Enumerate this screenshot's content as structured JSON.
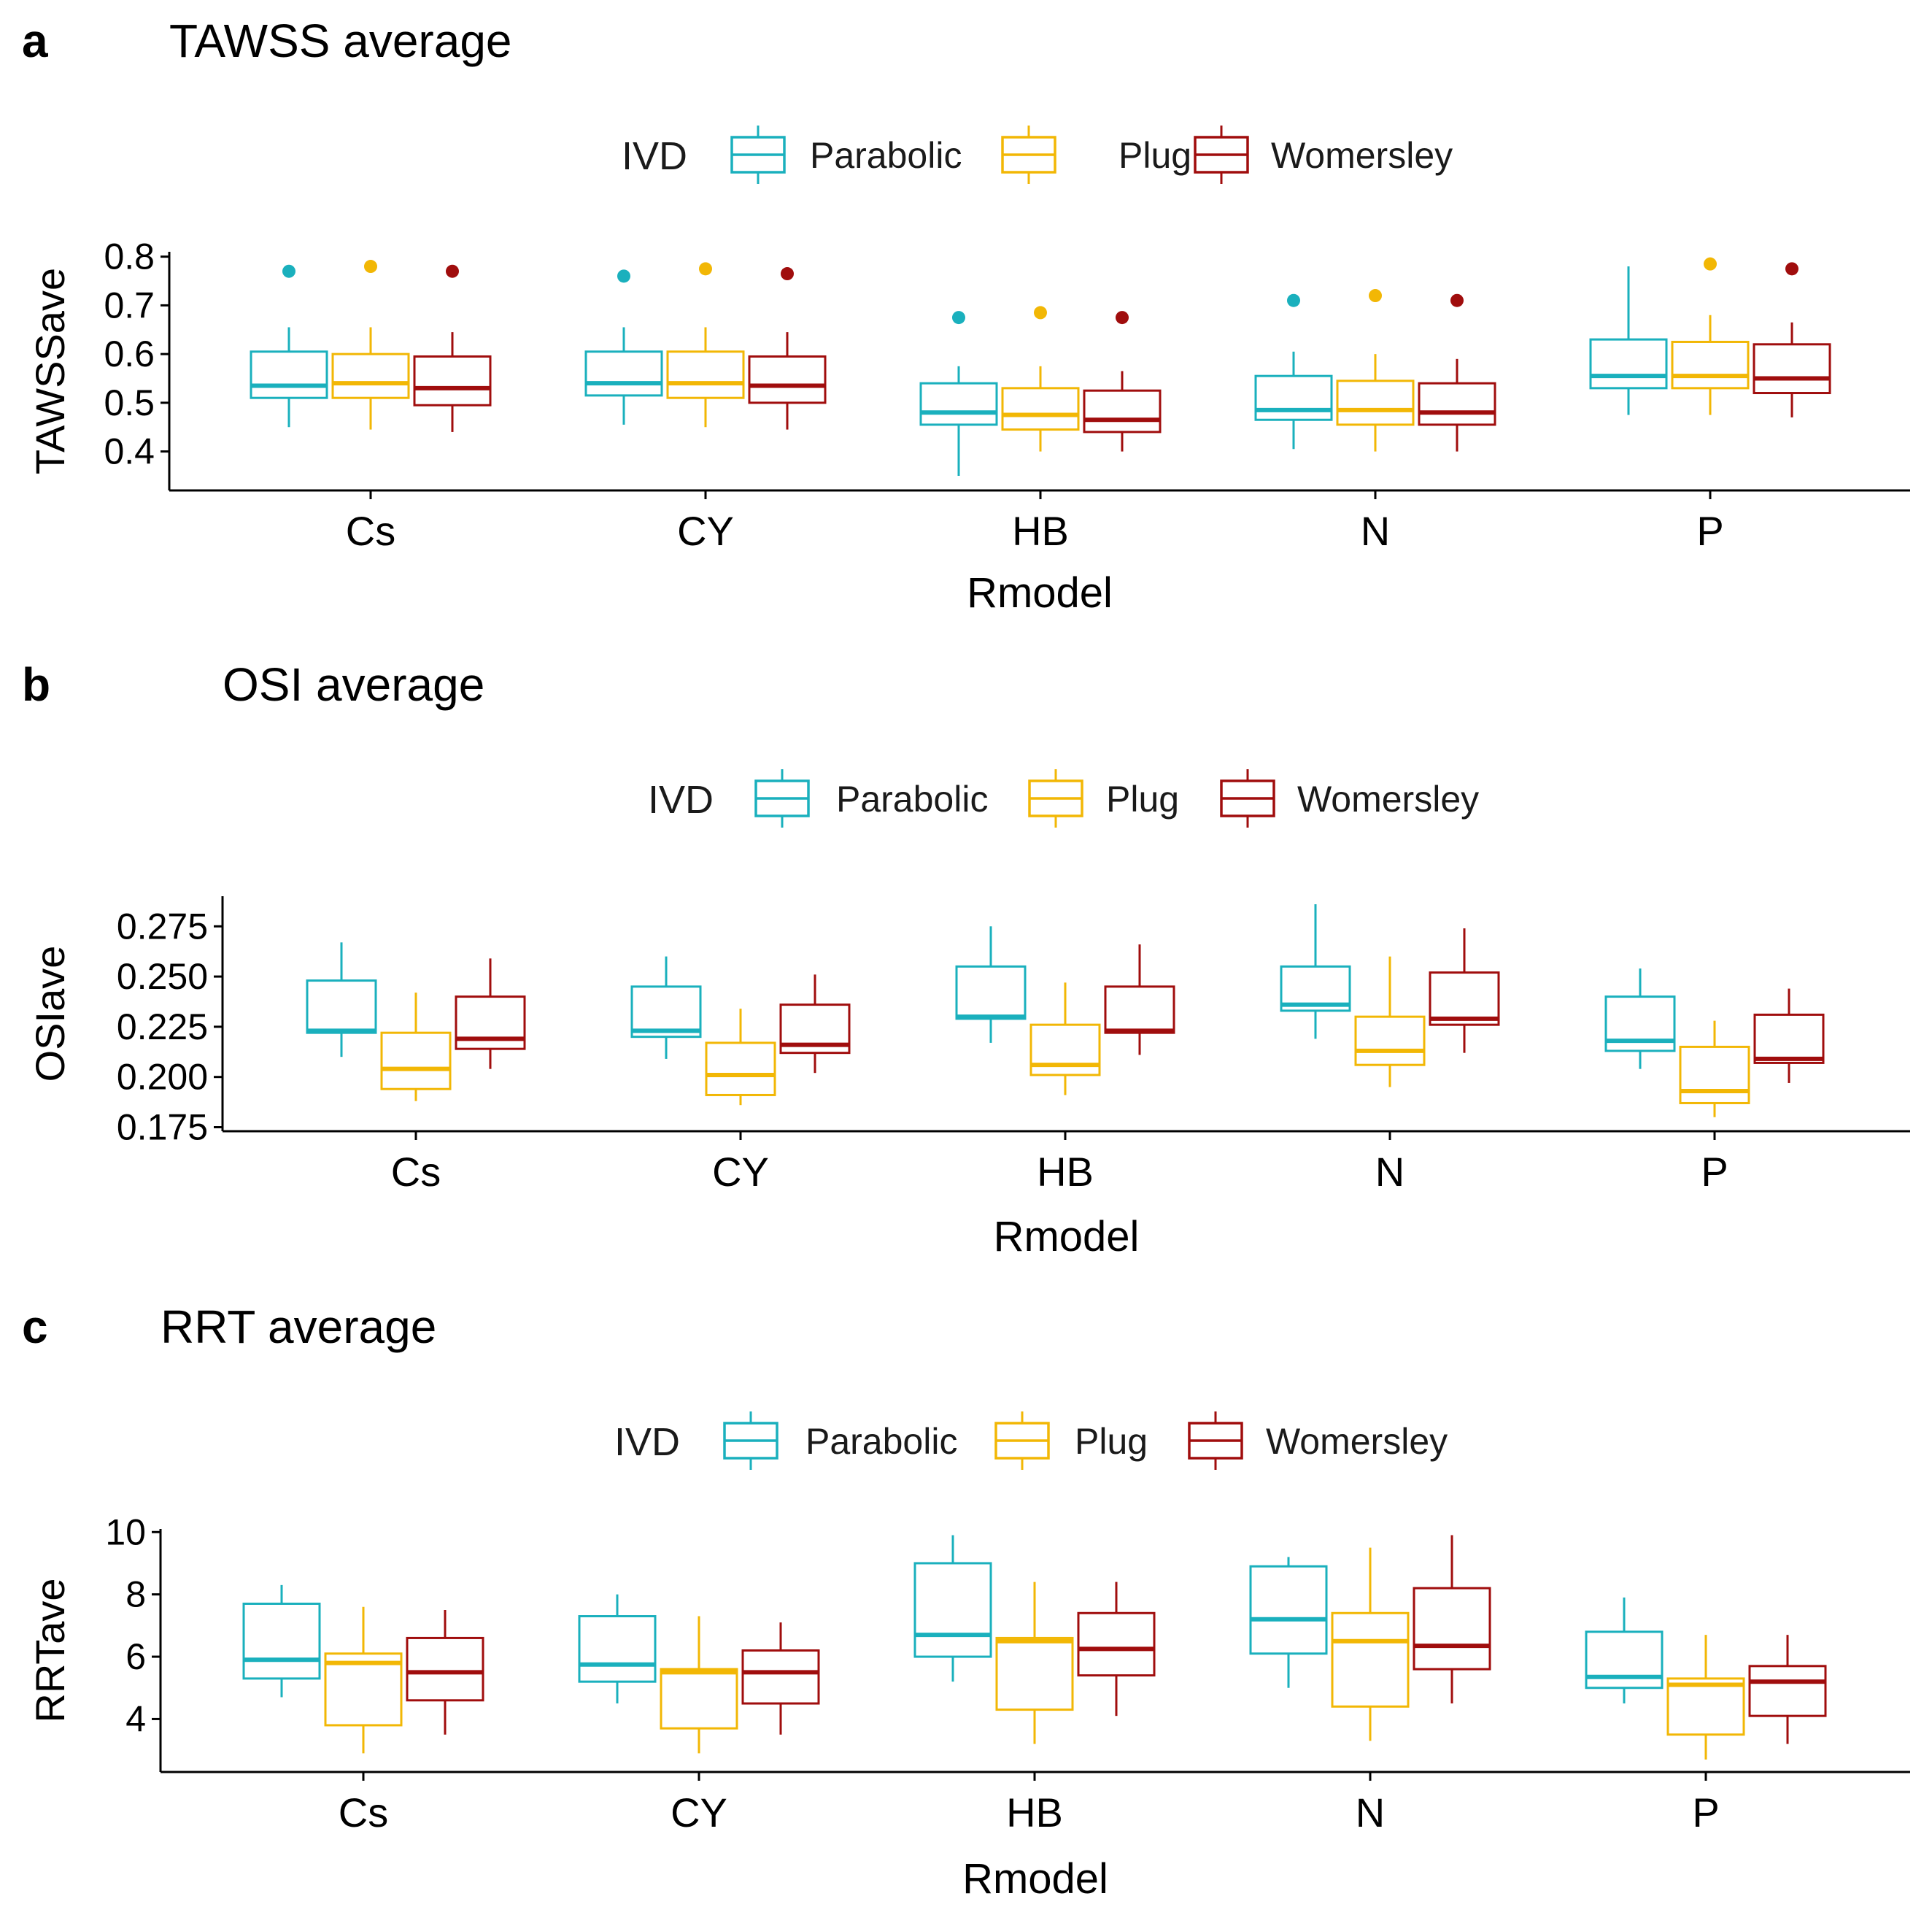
{
  "colors": {
    "Parabolic": "#1ab0bd",
    "Plug": "#f2b705",
    "Womersley": "#a00d0d",
    "axis": "#000000",
    "text": "#000000",
    "legend_text": "#1a1a1a"
  },
  "chart_data": [
    {
      "type": "boxplot",
      "panel_label": "a",
      "title": "TAWSS average",
      "xlabel": "Rmodel",
      "ylabel": "TAWSSave",
      "ylim": [
        0.32,
        0.81
      ],
      "yticks": [
        0.4,
        0.5,
        0.6,
        0.7,
        0.8
      ],
      "ytick_labels": [
        "0.4",
        "0.5",
        "0.6",
        "0.7",
        "0.8"
      ],
      "legend_title": "IVD",
      "legend_position": "top-center",
      "categories": [
        "Cs",
        "CY",
        "HB",
        "N",
        "P"
      ],
      "series": [
        {
          "name": "Parabolic",
          "boxes": [
            {
              "min": 0.45,
              "q1": 0.51,
              "median": 0.535,
              "q3": 0.605,
              "max": 0.655,
              "outliers": [
                0.77
              ]
            },
            {
              "min": 0.455,
              "q1": 0.515,
              "median": 0.54,
              "q3": 0.605,
              "max": 0.655,
              "outliers": [
                0.76
              ]
            },
            {
              "min": 0.35,
              "q1": 0.455,
              "median": 0.48,
              "q3": 0.54,
              "max": 0.575,
              "outliers": [
                0.675
              ]
            },
            {
              "min": 0.405,
              "q1": 0.465,
              "median": 0.485,
              "q3": 0.555,
              "max": 0.605,
              "outliers": [
                0.71
              ]
            },
            {
              "min": 0.475,
              "q1": 0.53,
              "median": 0.555,
              "q3": 0.63,
              "max": 0.78,
              "outliers": []
            }
          ]
        },
        {
          "name": "Plug",
          "boxes": [
            {
              "min": 0.445,
              "q1": 0.51,
              "median": 0.54,
              "q3": 0.6,
              "max": 0.655,
              "outliers": [
                0.78
              ]
            },
            {
              "min": 0.45,
              "q1": 0.51,
              "median": 0.54,
              "q3": 0.605,
              "max": 0.655,
              "outliers": [
                0.775
              ]
            },
            {
              "min": 0.4,
              "q1": 0.445,
              "median": 0.475,
              "q3": 0.53,
              "max": 0.575,
              "outliers": [
                0.685
              ]
            },
            {
              "min": 0.4,
              "q1": 0.455,
              "median": 0.485,
              "q3": 0.545,
              "max": 0.6,
              "outliers": [
                0.72
              ]
            },
            {
              "min": 0.475,
              "q1": 0.53,
              "median": 0.555,
              "q3": 0.625,
              "max": 0.68,
              "outliers": [
                0.785
              ]
            }
          ]
        },
        {
          "name": "Womersley",
          "boxes": [
            {
              "min": 0.44,
              "q1": 0.495,
              "median": 0.53,
              "q3": 0.595,
              "max": 0.645,
              "outliers": [
                0.77
              ]
            },
            {
              "min": 0.445,
              "q1": 0.5,
              "median": 0.535,
              "q3": 0.595,
              "max": 0.645,
              "outliers": [
                0.765
              ]
            },
            {
              "min": 0.4,
              "q1": 0.44,
              "median": 0.465,
              "q3": 0.525,
              "max": 0.565,
              "outliers": [
                0.675
              ]
            },
            {
              "min": 0.4,
              "q1": 0.455,
              "median": 0.48,
              "q3": 0.54,
              "max": 0.59,
              "outliers": [
                0.71
              ]
            },
            {
              "min": 0.47,
              "q1": 0.52,
              "median": 0.55,
              "q3": 0.62,
              "max": 0.665,
              "outliers": [
                0.775
              ]
            }
          ]
        }
      ]
    },
    {
      "type": "boxplot",
      "panel_label": "b",
      "title": "OSI average",
      "xlabel": "Rmodel",
      "ylabel": "OSIave",
      "ylim": [
        0.173,
        0.29
      ],
      "yticks": [
        0.175,
        0.2,
        0.225,
        0.25,
        0.275
      ],
      "ytick_labels": [
        "0.175",
        "0.200",
        "0.225",
        "0.250",
        "0.275"
      ],
      "legend_title": "IVD",
      "legend_position": "top-center",
      "categories": [
        "Cs",
        "CY",
        "HB",
        "N",
        "P"
      ],
      "series": [
        {
          "name": "Parabolic",
          "boxes": [
            {
              "min": 0.21,
              "q1": 0.222,
              "median": 0.223,
              "q3": 0.248,
              "max": 0.267,
              "outliers": []
            },
            {
              "min": 0.209,
              "q1": 0.22,
              "median": 0.223,
              "q3": 0.245,
              "max": 0.26,
              "outliers": []
            },
            {
              "min": 0.217,
              "q1": 0.229,
              "median": 0.23,
              "q3": 0.255,
              "max": 0.275,
              "outliers": []
            },
            {
              "min": 0.219,
              "q1": 0.233,
              "median": 0.236,
              "q3": 0.255,
              "max": 0.286,
              "outliers": []
            },
            {
              "min": 0.204,
              "q1": 0.213,
              "median": 0.218,
              "q3": 0.24,
              "max": 0.254,
              "outliers": []
            }
          ]
        },
        {
          "name": "Plug",
          "boxes": [
            {
              "min": 0.188,
              "q1": 0.194,
              "median": 0.204,
              "q3": 0.222,
              "max": 0.242,
              "outliers": []
            },
            {
              "min": 0.186,
              "q1": 0.191,
              "median": 0.201,
              "q3": 0.217,
              "max": 0.234,
              "outliers": []
            },
            {
              "min": 0.191,
              "q1": 0.201,
              "median": 0.206,
              "q3": 0.226,
              "max": 0.247,
              "outliers": []
            },
            {
              "min": 0.195,
              "q1": 0.206,
              "median": 0.213,
              "q3": 0.23,
              "max": 0.26,
              "outliers": []
            },
            {
              "min": 0.18,
              "q1": 0.187,
              "median": 0.193,
              "q3": 0.215,
              "max": 0.228,
              "outliers": []
            }
          ]
        },
        {
          "name": "Womersley",
          "boxes": [
            {
              "min": 0.204,
              "q1": 0.214,
              "median": 0.219,
              "q3": 0.24,
              "max": 0.259,
              "outliers": []
            },
            {
              "min": 0.202,
              "q1": 0.212,
              "median": 0.216,
              "q3": 0.236,
              "max": 0.251,
              "outliers": []
            },
            {
              "min": 0.211,
              "q1": 0.222,
              "median": 0.223,
              "q3": 0.245,
              "max": 0.266,
              "outliers": []
            },
            {
              "min": 0.212,
              "q1": 0.226,
              "median": 0.229,
              "q3": 0.252,
              "max": 0.274,
              "outliers": []
            },
            {
              "min": 0.197,
              "q1": 0.207,
              "median": 0.209,
              "q3": 0.231,
              "max": 0.244,
              "outliers": []
            }
          ]
        }
      ]
    },
    {
      "type": "boxplot",
      "panel_label": "c",
      "title": "RRT average",
      "xlabel": "Rmodel",
      "ylabel": "RRTave",
      "ylim": [
        2.3,
        10.1
      ],
      "yticks": [
        4,
        6,
        8,
        10
      ],
      "ytick_labels": [
        "4",
        "6",
        "8",
        "10"
      ],
      "legend_title": "IVD",
      "legend_position": "top-center",
      "categories": [
        "Cs",
        "CY",
        "HB",
        "N",
        "P"
      ],
      "series": [
        {
          "name": "Parabolic",
          "boxes": [
            {
              "min": 4.7,
              "q1": 5.3,
              "median": 5.9,
              "q3": 7.7,
              "max": 8.3,
              "outliers": []
            },
            {
              "min": 4.5,
              "q1": 5.2,
              "median": 5.75,
              "q3": 7.3,
              "max": 8.0,
              "outliers": []
            },
            {
              "min": 5.2,
              "q1": 6.0,
              "median": 6.7,
              "q3": 9.0,
              "max": 9.9,
              "outliers": []
            },
            {
              "min": 5.0,
              "q1": 6.1,
              "median": 7.2,
              "q3": 8.9,
              "max": 9.2,
              "outliers": []
            },
            {
              "min": 4.5,
              "q1": 5.0,
              "median": 5.35,
              "q3": 6.8,
              "max": 7.9,
              "outliers": []
            }
          ]
        },
        {
          "name": "Plug",
          "boxes": [
            {
              "min": 2.9,
              "q1": 3.8,
              "median": 5.8,
              "q3": 6.1,
              "max": 7.6,
              "outliers": []
            },
            {
              "min": 2.9,
              "q1": 3.7,
              "median": 5.5,
              "q3": 5.6,
              "max": 7.3,
              "outliers": []
            },
            {
              "min": 3.2,
              "q1": 4.3,
              "median": 6.5,
              "q3": 6.6,
              "max": 8.4,
              "outliers": []
            },
            {
              "min": 3.3,
              "q1": 4.4,
              "median": 6.5,
              "q3": 7.4,
              "max": 9.5,
              "outliers": []
            },
            {
              "min": 2.7,
              "q1": 3.5,
              "median": 5.1,
              "q3": 5.3,
              "max": 6.7,
              "outliers": []
            }
          ]
        },
        {
          "name": "Womersley",
          "boxes": [
            {
              "min": 3.5,
              "q1": 4.6,
              "median": 5.5,
              "q3": 6.6,
              "max": 7.5,
              "outliers": []
            },
            {
              "min": 3.5,
              "q1": 4.5,
              "median": 5.5,
              "q3": 6.2,
              "max": 7.1,
              "outliers": []
            },
            {
              "min": 4.1,
              "q1": 5.4,
              "median": 6.25,
              "q3": 7.4,
              "max": 8.4,
              "outliers": []
            },
            {
              "min": 4.5,
              "q1": 5.6,
              "median": 6.35,
              "q3": 8.2,
              "max": 9.9,
              "outliers": []
            },
            {
              "min": 3.2,
              "q1": 4.1,
              "median": 5.2,
              "q3": 5.7,
              "max": 6.7,
              "outliers": []
            }
          ]
        }
      ]
    }
  ]
}
